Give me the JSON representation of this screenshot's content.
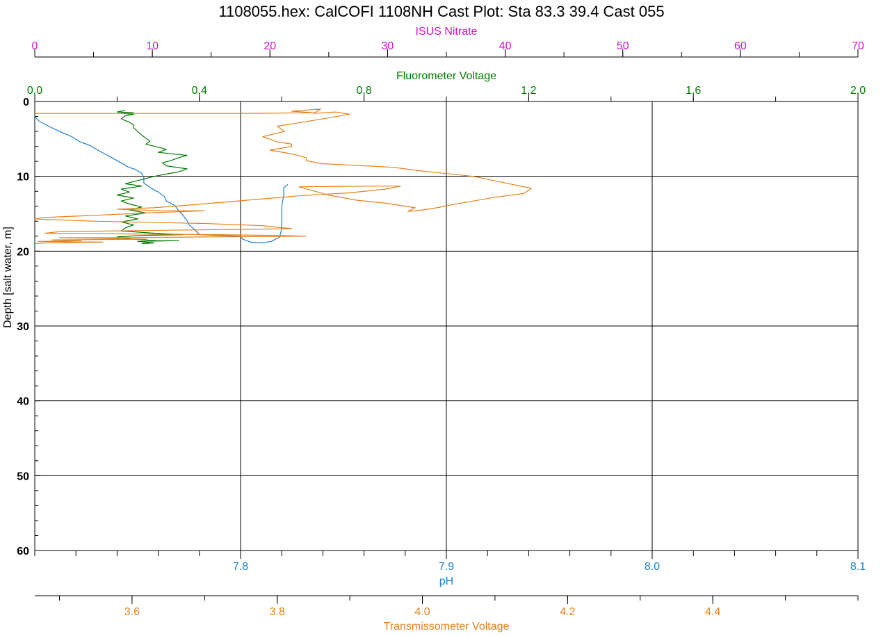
{
  "chart_data": {
    "type": "line",
    "title": "1108055.hex: CalCOFI 1108NH Cast Plot:  Sta 83.3 39.4 Cast 055",
    "grid": true,
    "depth_axis": {
      "label": "Depth [salt water, m]",
      "range": [
        0,
        60
      ],
      "inverted": true,
      "major_ticks": [
        0,
        10,
        20,
        30,
        40,
        50,
        60
      ],
      "minor_step": 2
    },
    "top_axes": [
      {
        "id": "nitrate",
        "label": "ISUS Nitrate",
        "color": "#d010c8",
        "range": [
          0,
          70
        ],
        "ticks": [
          {
            "v": 0,
            "t": "0"
          },
          {
            "v": 10,
            "t": "10"
          },
          {
            "v": 20,
            "t": "20"
          },
          {
            "v": 30,
            "t": "30"
          },
          {
            "v": 40,
            "t": "40"
          },
          {
            "v": 50,
            "t": "50"
          },
          {
            "v": 60,
            "t": "60"
          },
          {
            "v": 70,
            "t": "70"
          }
        ],
        "minor_step": 5
      },
      {
        "id": "fluorometer",
        "label": "Fluorometer Voltage",
        "color": "#007a00",
        "range": [
          0,
          2
        ],
        "ticks": [
          {
            "v": 0,
            "t": "0.0"
          },
          {
            "v": 0.4,
            "t": "0.4"
          },
          {
            "v": 0.8,
            "t": "0.8"
          },
          {
            "v": 1.2,
            "t": "1.2"
          },
          {
            "v": 1.6,
            "t": "1.6"
          },
          {
            "v": 2.0,
            "t": "2.0"
          }
        ],
        "minor_step": 0.2
      }
    ],
    "bottom_axes": [
      {
        "id": "ph",
        "label": "pH",
        "color": "#1a7fd0",
        "range": [
          7.7,
          8.1
        ],
        "ticks": [
          {
            "v": 7.8,
            "t": "7.8"
          },
          {
            "v": 7.9,
            "t": "7.9"
          },
          {
            "v": 8.0,
            "t": "8.0"
          },
          {
            "v": 8.1,
            "t": "8.1"
          }
        ],
        "minor_step": 0.02
      },
      {
        "id": "transmissometer",
        "label": "Transmissometer Voltage",
        "color": "#e5801a",
        "range": [
          3.466,
          4.6
        ],
        "ticks": [
          {
            "v": 3.6,
            "t": "3.6"
          },
          {
            "v": 3.8,
            "t": "3.8"
          },
          {
            "v": 4.0,
            "t": "4.0"
          },
          {
            "v": 4.2,
            "t": "4.2"
          },
          {
            "v": 4.4,
            "t": "4.4"
          }
        ],
        "minor_step": 0.1
      }
    ],
    "series": [
      {
        "name": "pH",
        "axis": "ph",
        "color": "#1a7fd0",
        "points": [
          [
            7.7,
            2.0
          ],
          [
            7.702,
            2.6
          ],
          [
            7.706,
            3.2
          ],
          [
            7.712,
            4.0
          ],
          [
            7.718,
            4.7
          ],
          [
            7.722,
            5.4
          ],
          [
            7.727,
            5.9
          ],
          [
            7.73,
            6.4
          ],
          [
            7.734,
            7.0
          ],
          [
            7.738,
            7.6
          ],
          [
            7.742,
            8.2
          ],
          [
            7.745,
            8.7
          ],
          [
            7.749,
            9.1
          ],
          [
            7.752,
            9.6
          ],
          [
            7.753,
            10.2
          ],
          [
            7.753,
            10.9
          ],
          [
            7.756,
            11.5
          ],
          [
            7.76,
            12.1
          ],
          [
            7.763,
            12.7
          ],
          [
            7.764,
            13.3
          ],
          [
            7.768,
            13.9
          ],
          [
            7.77,
            14.6
          ],
          [
            7.772,
            15.2
          ],
          [
            7.774,
            15.9
          ],
          [
            7.775,
            16.5
          ],
          [
            7.778,
            17.2
          ],
          [
            7.78,
            17.8
          ],
          [
            7.79,
            17.9
          ],
          [
            7.8,
            18.0
          ],
          [
            7.801,
            18.4
          ],
          [
            7.805,
            18.8
          ],
          [
            7.81,
            18.9
          ],
          [
            7.815,
            18.7
          ],
          [
            7.819,
            18.1
          ],
          [
            7.82,
            17.0
          ],
          [
            7.82,
            15.5
          ],
          [
            7.82,
            14.0
          ],
          [
            7.821,
            12.5
          ],
          [
            7.821,
            11.5
          ],
          [
            7.823,
            11.1
          ]
        ]
      },
      {
        "name": "Fluorometer Voltage",
        "axis": "fluorometer",
        "color": "#007a00",
        "points": [
          [
            0.22,
            1.2
          ],
          [
            0.2,
            1.4
          ],
          [
            0.24,
            1.5
          ],
          [
            0.21,
            1.6
          ],
          [
            0.24,
            1.7
          ],
          [
            0.22,
            1.9
          ],
          [
            0.21,
            2.3
          ],
          [
            0.23,
            2.8
          ],
          [
            0.24,
            3.1
          ],
          [
            0.24,
            3.5
          ],
          [
            0.25,
            4.0
          ],
          [
            0.26,
            4.5
          ],
          [
            0.27,
            4.9
          ],
          [
            0.28,
            5.3
          ],
          [
            0.27,
            5.7
          ],
          [
            0.3,
            6.1
          ],
          [
            0.32,
            6.4
          ],
          [
            0.3,
            6.8
          ],
          [
            0.37,
            7.2
          ],
          [
            0.35,
            7.5
          ],
          [
            0.33,
            7.9
          ],
          [
            0.31,
            8.2
          ],
          [
            0.32,
            8.6
          ],
          [
            0.37,
            9.0
          ],
          [
            0.35,
            9.4
          ],
          [
            0.32,
            9.7
          ],
          [
            0.29,
            10.0
          ],
          [
            0.27,
            10.3
          ],
          [
            0.24,
            10.7
          ],
          [
            0.22,
            11.0
          ],
          [
            0.26,
            11.3
          ],
          [
            0.21,
            11.7
          ],
          [
            0.23,
            12.1
          ],
          [
            0.2,
            12.5
          ],
          [
            0.24,
            12.9
          ],
          [
            0.21,
            13.3
          ],
          [
            0.23,
            13.7
          ],
          [
            0.26,
            14.1
          ],
          [
            0.23,
            14.5
          ],
          [
            0.27,
            14.9
          ],
          [
            0.22,
            15.3
          ],
          [
            0.25,
            15.7
          ],
          [
            0.21,
            16.1
          ],
          [
            0.24,
            16.5
          ],
          [
            0.22,
            16.9
          ],
          [
            0.21,
            17.3
          ],
          [
            0.29,
            17.6
          ],
          [
            0.36,
            17.8
          ],
          [
            0.26,
            17.9
          ],
          [
            0.2,
            18.1
          ],
          [
            0.24,
            18.4
          ],
          [
            0.3,
            18.6
          ],
          [
            0.35,
            18.6
          ],
          [
            0.25,
            18.7
          ],
          [
            0.29,
            18.9
          ],
          [
            0.26,
            19.0
          ]
        ]
      },
      {
        "name": "Transmissometer Voltage",
        "axis": "transmissometer",
        "color": "#e5801a",
        "points": [
          [
            3.466,
            1.6
          ],
          [
            3.6,
            1.6
          ],
          [
            3.75,
            1.6
          ],
          [
            3.85,
            1.5
          ],
          [
            3.82,
            1.3
          ],
          [
            3.86,
            1.0
          ],
          [
            3.85,
            1.6
          ],
          [
            3.88,
            1.4
          ],
          [
            3.9,
            1.7
          ],
          [
            3.87,
            2.2
          ],
          [
            3.82,
            3.0
          ],
          [
            3.8,
            3.3
          ],
          [
            3.81,
            4.0
          ],
          [
            3.78,
            4.7
          ],
          [
            3.8,
            5.4
          ],
          [
            3.82,
            5.7
          ],
          [
            3.82,
            6.0
          ],
          [
            3.79,
            6.5
          ],
          [
            3.82,
            7.0
          ],
          [
            3.84,
            7.5
          ],
          [
            3.84,
            7.9
          ],
          [
            3.86,
            8.3
          ],
          [
            3.96,
            8.8
          ],
          [
            4.0,
            9.3
          ],
          [
            4.07,
            10.0
          ],
          [
            4.11,
            10.8
          ],
          [
            4.15,
            11.6
          ],
          [
            4.14,
            12.3
          ],
          [
            4.1,
            12.8
          ],
          [
            4.07,
            13.3
          ],
          [
            4.04,
            13.8
          ],
          [
            4.02,
            14.2
          ],
          [
            4.0,
            14.5
          ],
          [
            3.98,
            14.7
          ],
          [
            3.99,
            14.2
          ],
          [
            3.95,
            13.6
          ],
          [
            3.91,
            13.2
          ],
          [
            3.87,
            12.5
          ],
          [
            3.83,
            11.4
          ],
          [
            3.95,
            11.3
          ],
          [
            3.97,
            11.3
          ],
          [
            3.95,
            11.7
          ],
          [
            3.9,
            12.2
          ],
          [
            3.83,
            12.6
          ],
          [
            3.77,
            13.1
          ],
          [
            3.71,
            13.6
          ],
          [
            3.63,
            14.2
          ],
          [
            3.58,
            14.4
          ],
          [
            3.64,
            14.6
          ],
          [
            3.7,
            14.6
          ],
          [
            3.62,
            14.9
          ],
          [
            3.55,
            15.2
          ],
          [
            3.48,
            15.5
          ],
          [
            3.466,
            15.7
          ],
          [
            3.55,
            16.0
          ],
          [
            3.7,
            16.3
          ],
          [
            3.78,
            16.6
          ],
          [
            3.82,
            17.0
          ],
          [
            3.65,
            17.2
          ],
          [
            3.5,
            17.4
          ],
          [
            3.48,
            17.6
          ],
          [
            3.6,
            17.7
          ],
          [
            3.72,
            17.8
          ],
          [
            3.8,
            17.9
          ],
          [
            3.84,
            18.0
          ],
          [
            3.7,
            18.1
          ],
          [
            3.58,
            18.2
          ],
          [
            3.5,
            18.2
          ],
          [
            3.56,
            18.3
          ],
          [
            3.62,
            18.4
          ],
          [
            3.49,
            18.5
          ],
          [
            3.53,
            18.6
          ],
          [
            3.47,
            18.7
          ],
          [
            3.56,
            18.8
          ],
          [
            3.48,
            18.9
          ],
          [
            3.466,
            19.0
          ]
        ]
      }
    ]
  }
}
